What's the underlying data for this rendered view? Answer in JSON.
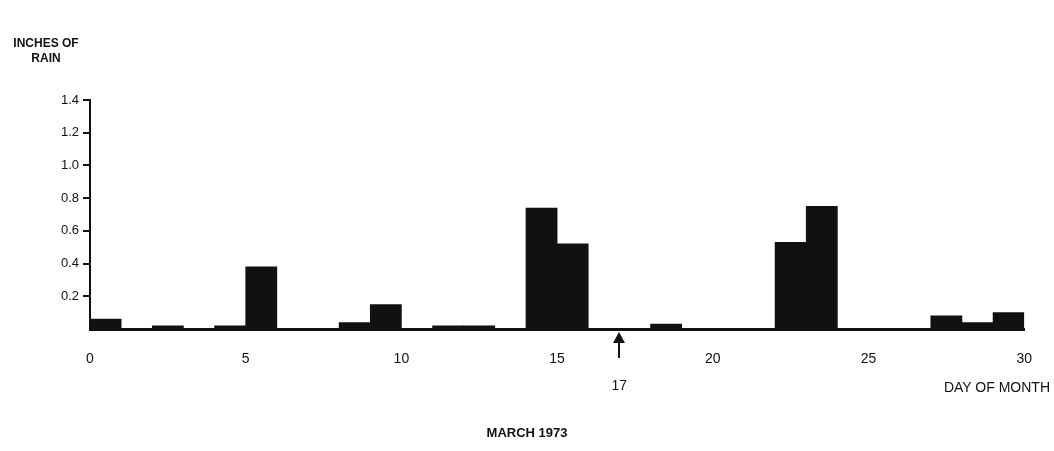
{
  "chart_data": {
    "type": "histogram",
    "ylabel": "INCHES OF RAIN",
    "xlabel": "DAY OF MONTH",
    "annotations": [
      "17",
      "MARCH 1973"
    ],
    "bins": [
      0,
      1,
      2,
      3,
      4,
      5,
      6,
      7,
      8,
      9,
      10,
      11,
      12,
      13,
      14,
      15,
      16,
      17,
      18,
      19,
      20,
      21,
      22,
      23,
      24,
      25,
      26,
      27,
      28,
      29,
      30
    ],
    "values": [
      0.06,
      0,
      0.02,
      0,
      0.02,
      0.38,
      0,
      0,
      0.04,
      0.15,
      0,
      0.02,
      0.02,
      0,
      0.74,
      0.52,
      0,
      0,
      0.03,
      0,
      0,
      0,
      0.53,
      0.75,
      0,
      0,
      0,
      0.08,
      0.04,
      0.1
    ],
    "color": "#111111",
    "xlim": [
      0,
      30
    ],
    "xticks": [
      0,
      5,
      10,
      15,
      20,
      25,
      30
    ],
    "ylim": [
      0,
      1.4
    ],
    "yticks": [
      0.2,
      0.4,
      0.6,
      0.8,
      {
        "value": 1,
        "label": "1.0"
      },
      1.2,
      1.4
    ],
    "grid": false,
    "legend": false
  }
}
